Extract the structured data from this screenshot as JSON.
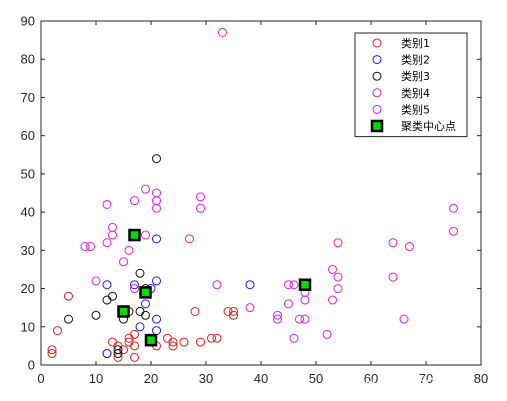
{
  "chart_data": {
    "type": "scatter",
    "xlim": [
      0,
      80
    ],
    "ylim": [
      0,
      90
    ],
    "xticks": [
      0,
      10,
      20,
      30,
      40,
      50,
      60,
      70,
      80
    ],
    "yticks": [
      0,
      10,
      20,
      30,
      40,
      50,
      60,
      70,
      80,
      90
    ],
    "grid": false,
    "legend_position": "top-right",
    "series": [
      {
        "name": "类别1",
        "color": "#e02020",
        "marker": "circle",
        "points": [
          [
            2,
            3
          ],
          [
            2,
            4
          ],
          [
            3,
            9
          ],
          [
            5,
            18
          ],
          [
            12,
            3
          ],
          [
            13,
            6
          ],
          [
            14,
            2
          ],
          [
            14,
            5
          ],
          [
            15,
            4
          ],
          [
            16,
            6
          ],
          [
            16,
            7
          ],
          [
            17,
            2
          ],
          [
            17,
            5
          ],
          [
            17,
            8
          ],
          [
            20,
            6
          ],
          [
            21,
            5
          ],
          [
            23,
            7
          ],
          [
            24,
            5
          ],
          [
            24,
            6
          ],
          [
            26,
            6
          ],
          [
            28,
            14
          ],
          [
            29,
            6
          ],
          [
            31,
            7
          ],
          [
            32,
            7
          ],
          [
            34,
            14
          ],
          [
            35,
            13
          ],
          [
            35,
            14
          ]
        ]
      },
      {
        "name": "类别2",
        "color": "#1a1aff",
        "marker": "circle",
        "points": [
          [
            12,
            3
          ],
          [
            12,
            21
          ],
          [
            17,
            21
          ],
          [
            18,
            10
          ],
          [
            19,
            16
          ],
          [
            20,
            20
          ],
          [
            21,
            9
          ],
          [
            21,
            12
          ],
          [
            21,
            22
          ],
          [
            21,
            33
          ],
          [
            38,
            21
          ]
        ]
      },
      {
        "name": "类别3",
        "color": "#111111",
        "marker": "circle",
        "points": [
          [
            5,
            12
          ],
          [
            10,
            13
          ],
          [
            12,
            17
          ],
          [
            13,
            18
          ],
          [
            14,
            3
          ],
          [
            14,
            4
          ],
          [
            15,
            12
          ],
          [
            16,
            14
          ],
          [
            18,
            14
          ],
          [
            18,
            24
          ],
          [
            19,
            13
          ],
          [
            19,
            19
          ],
          [
            19,
            20
          ],
          [
            21,
            54
          ]
        ]
      },
      {
        "name": "类别4",
        "color": "#e020e0",
        "marker": "circle",
        "points": [
          [
            13,
            36
          ],
          [
            15,
            27
          ],
          [
            21,
            41
          ],
          [
            27,
            33
          ],
          [
            29,
            41
          ],
          [
            29,
            44
          ],
          [
            32,
            21
          ],
          [
            33,
            87
          ],
          [
            38,
            15
          ],
          [
            43,
            12
          ],
          [
            43,
            13
          ],
          [
            45,
            16
          ],
          [
            45,
            21
          ],
          [
            46,
            21
          ],
          [
            46,
            7
          ],
          [
            47,
            12
          ],
          [
            48,
            12
          ],
          [
            48,
            17
          ],
          [
            48,
            19
          ],
          [
            52,
            8
          ],
          [
            53,
            17
          ],
          [
            53,
            25
          ],
          [
            54,
            20
          ],
          [
            54,
            23
          ],
          [
            54,
            32
          ],
          [
            64,
            23
          ],
          [
            64,
            32
          ],
          [
            66,
            12
          ],
          [
            67,
            31
          ],
          [
            75,
            35
          ],
          [
            75,
            41
          ]
        ]
      },
      {
        "name": "类别5",
        "color": "#e020e0",
        "marker": "circle",
        "points": [
          [
            8,
            31
          ],
          [
            9,
            31
          ],
          [
            10,
            22
          ],
          [
            12,
            32
          ],
          [
            12,
            42
          ],
          [
            13,
            34
          ],
          [
            16,
            30
          ],
          [
            17,
            20
          ],
          [
            17,
            43
          ],
          [
            19,
            34
          ],
          [
            19,
            46
          ],
          [
            21,
            43
          ],
          [
            21,
            45
          ]
        ]
      },
      {
        "name": "聚类中心点",
        "color": "#00dd00",
        "edge_color": "#000000",
        "marker": "square",
        "points": [
          [
            15,
            14
          ],
          [
            17,
            34
          ],
          [
            19,
            19
          ],
          [
            20,
            6.5
          ],
          [
            48,
            21
          ]
        ]
      }
    ]
  },
  "watermark": "CSDN @我爱C编程"
}
